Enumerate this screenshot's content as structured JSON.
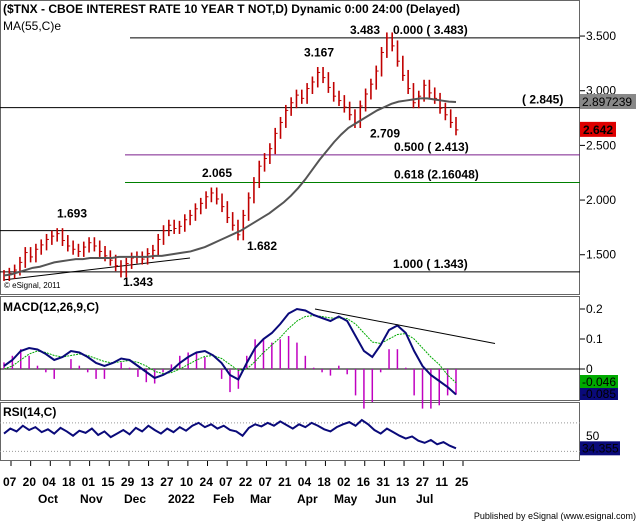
{
  "header": {
    "title": "($TNX - CBOE INTEREST RATE 10 YEAR T NOT,D) Dynamic 0:00 24:00 (Delayed)",
    "ma_legend": "MA(55,C)e",
    "copyright": "© eSignal, 2011"
  },
  "footer": {
    "published": "Published by eSignal (www.esignal.com)"
  },
  "colors": {
    "price_bar": "#c00000",
    "ma_line": "#555555",
    "fib_0_500": "#7b1f8c",
    "fib_0_618": "#008000",
    "macd_line": "#0a0a7a",
    "macd_signal": "#00aa00",
    "histogram": "#c000c0",
    "rsi_line": "#0a0a7a",
    "last_price_badge": "#dd0000"
  },
  "chart_data": [
    {
      "type": "candlestick",
      "panel": "price",
      "title": "($TNX - CBOE INTEREST RATE 10 YEAR T NOT,D) Dynamic 0:00 24:00 (Delayed)",
      "ylim": [
        1.15,
        3.72
      ],
      "y_ticks": [
        "3.500",
        "3.000",
        "2.500",
        "2.000",
        "1.500"
      ],
      "y_tick_values": [
        3.5,
        3.0,
        2.5,
        2.0,
        1.5
      ],
      "x_tick_labels": [
        "07",
        "20",
        "04",
        "18",
        "01",
        "15",
        "29",
        "13",
        "27",
        "10",
        "24",
        "07",
        "22",
        "07",
        "21",
        "04",
        "18",
        "02",
        "16",
        "31",
        "13",
        "27",
        "11",
        "25"
      ],
      "x_month_labels": [
        "Oct",
        "Nov",
        "Dec",
        "2022",
        "Feb",
        "Mar",
        "Apr",
        "May",
        "Jun",
        "Jul"
      ],
      "close_series": [
        1.31,
        1.33,
        1.36,
        1.43,
        1.52,
        1.48,
        1.55,
        1.59,
        1.64,
        1.67,
        1.693,
        1.63,
        1.58,
        1.55,
        1.53,
        1.57,
        1.61,
        1.58,
        1.53,
        1.49,
        1.45,
        1.4,
        1.343,
        1.42,
        1.47,
        1.48,
        1.46,
        1.51,
        1.54,
        1.64,
        1.72,
        1.77,
        1.74,
        1.76,
        1.82,
        1.86,
        1.92,
        1.97,
        2.03,
        2.065,
        2.01,
        1.94,
        1.84,
        1.77,
        1.682,
        1.86,
        2.02,
        2.16,
        2.31,
        2.38,
        2.47,
        2.61,
        2.71,
        2.82,
        2.89,
        2.96,
        2.93,
        3.02,
        3.08,
        3.167,
        3.12,
        3.03,
        2.95,
        2.91,
        2.85,
        2.78,
        2.709,
        2.86,
        2.97,
        3.06,
        3.18,
        3.35,
        3.483,
        3.41,
        3.27,
        3.14,
        3.02,
        2.89,
        2.95,
        3.05,
        2.98,
        2.93,
        2.84,
        2.78,
        2.71,
        2.642
      ],
      "ma55": [
        1.31,
        1.32,
        1.34,
        1.36,
        1.38,
        1.39,
        1.41,
        1.43,
        1.44,
        1.45,
        1.46,
        1.46,
        1.47,
        1.47,
        1.47,
        1.47,
        1.48,
        1.48,
        1.48,
        1.48,
        1.48,
        1.49,
        1.49,
        1.5,
        1.51,
        1.52,
        1.53,
        1.55,
        1.57,
        1.6,
        1.63,
        1.66,
        1.69,
        1.72,
        1.76,
        1.8,
        1.84,
        1.88,
        1.93,
        1.98,
        2.04,
        2.11,
        2.19,
        2.28,
        2.37,
        2.45,
        2.53,
        2.6,
        2.66,
        2.7,
        2.74,
        2.78,
        2.82,
        2.85,
        2.88,
        2.9,
        2.91,
        2.92,
        2.93,
        2.93,
        2.92,
        2.91,
        2.9,
        2.897
      ],
      "annotations": [
        "1.693",
        "1.343",
        "2.065",
        "1.682",
        "3.167",
        "2.709",
        "3.483"
      ],
      "horizontal_lines": [
        {
          "label": "0.000 ( 3.483)",
          "value": 3.483
        },
        {
          "label": "( 2.845)",
          "value": 2.845
        },
        {
          "label": "0.500 ( 2.413)",
          "value": 2.413
        },
        {
          "label": "0.618 (2.16048)",
          "value": 2.16048
        },
        {
          "label": "1.000 ( 1.343)",
          "value": 1.343
        }
      ],
      "last_values": {
        "ma": "2.897239",
        "close": "2.642"
      }
    },
    {
      "type": "line",
      "panel": "macd",
      "title": "MACD(12,26,9,C)",
      "ylim": [
        -0.1,
        0.23
      ],
      "y_ticks": [
        "0.2",
        "0.1",
        "0"
      ],
      "y_tick_values": [
        0.2,
        0.1,
        0.0
      ],
      "series": [
        {
          "name": "MACD",
          "values": [
            0.01,
            0.03,
            0.06,
            0.07,
            0.065,
            0.05,
            0.03,
            0.04,
            0.06,
            0.055,
            0.04,
            0.02,
            0.01,
            0.02,
            0.035,
            0.03,
            0.01,
            -0.01,
            -0.03,
            -0.02,
            -0.005,
            0.02,
            0.04,
            0.055,
            0.06,
            0.045,
            0.02,
            -0.02,
            -0.035,
            0.02,
            0.07,
            0.1,
            0.12,
            0.15,
            0.185,
            0.2,
            0.195,
            0.18,
            0.17,
            0.16,
            0.175,
            0.16,
            0.11,
            0.06,
            0.04,
            0.08,
            0.13,
            0.145,
            0.12,
            0.06,
            0.01,
            -0.02,
            -0.04,
            -0.06,
            -0.085
          ]
        },
        {
          "name": "Signal",
          "values": [
            0.0,
            0.01,
            0.03,
            0.05,
            0.06,
            0.055,
            0.045,
            0.04,
            0.045,
            0.05,
            0.045,
            0.035,
            0.025,
            0.02,
            0.025,
            0.028,
            0.022,
            0.01,
            -0.008,
            -0.015,
            -0.012,
            0.0,
            0.015,
            0.03,
            0.042,
            0.045,
            0.035,
            0.015,
            -0.005,
            0.0,
            0.025,
            0.055,
            0.08,
            0.105,
            0.135,
            0.16,
            0.175,
            0.178,
            0.175,
            0.17,
            0.17,
            0.168,
            0.15,
            0.12,
            0.09,
            0.085,
            0.1,
            0.115,
            0.118,
            0.1,
            0.07,
            0.04,
            0.015,
            -0.02,
            -0.046
          ]
        }
      ],
      "last_values": {
        "signal": "-0.046",
        "macd": "-0.085"
      }
    },
    {
      "type": "line",
      "panel": "rsi",
      "title": "RSI(14,C)",
      "ylim": [
        18,
        95
      ],
      "y_ticks": [
        "50"
      ],
      "y_tick_values": [
        50
      ],
      "series": [
        {
          "name": "RSI",
          "values": [
            55,
            62,
            58,
            66,
            60,
            64,
            57,
            61,
            55,
            63,
            58,
            52,
            59,
            56,
            62,
            53,
            58,
            50,
            55,
            60,
            54,
            63,
            58,
            66,
            60,
            55,
            62,
            57,
            64,
            59,
            66,
            70,
            64,
            68,
            62,
            66,
            60,
            58,
            52,
            63,
            68,
            65,
            70,
            66,
            72,
            67,
            62,
            68,
            64,
            70,
            66,
            61,
            58,
            64,
            68,
            71,
            66,
            74,
            68,
            60,
            55,
            62,
            57,
            52,
            48,
            51,
            45,
            42,
            46,
            40,
            43,
            38,
            34.355
          ]
        }
      ],
      "last_values": {
        "rsi": "34.355"
      }
    }
  ]
}
